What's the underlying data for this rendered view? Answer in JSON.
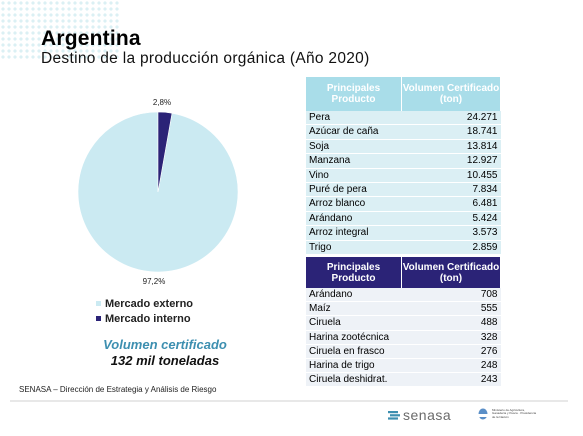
{
  "header": {
    "title": "Argentina",
    "subtitle": "Destino de la producción orgánica (Año 2020)"
  },
  "colors": {
    "externo": "#cbeaf2",
    "interno": "#2b2377",
    "accent": "#3d8fb0",
    "table1_head": "#a9dde9",
    "table2_head": "#2b2377"
  },
  "chart_data": {
    "type": "pie",
    "slices": [
      {
        "name": "Mercado externo",
        "value": 97.2,
        "label": "97,2%"
      },
      {
        "name": "Mercado interno",
        "value": 2.8,
        "label": "2,8%"
      }
    ]
  },
  "legend": {
    "externo": "Mercado externo",
    "interno": "Mercado interno"
  },
  "volume": {
    "label": "Volumen certificado",
    "value": "132 mil toneladas"
  },
  "table1": {
    "col1": "Principales Producto",
    "col2": "Volumen Certificado (ton)",
    "rows": [
      [
        "Pera",
        "24.271"
      ],
      [
        "Azúcar de caña",
        "18.741"
      ],
      [
        "Soja",
        "13.814"
      ],
      [
        "Manzana",
        "12.927"
      ],
      [
        "Vino",
        "10.455"
      ],
      [
        "Puré de pera",
        "7.834"
      ],
      [
        "Arroz blanco",
        "6.481"
      ],
      [
        "Arándano",
        "5.424"
      ],
      [
        "Arroz integral",
        "3.573"
      ],
      [
        "Trigo",
        "2.859"
      ]
    ]
  },
  "table2": {
    "col1": "Principales Producto",
    "col2": "Volumen Certificado (ton)",
    "rows": [
      [
        "Arándano",
        "708"
      ],
      [
        "Maíz",
        "555"
      ],
      [
        "Ciruela",
        "488"
      ],
      [
        "Harina zootécnica",
        "328"
      ],
      [
        "Ciruela en frasco",
        "276"
      ],
      [
        "Harina de trigo",
        "248"
      ],
      [
        "Ciruela deshidrat.",
        "243"
      ]
    ]
  },
  "footer": {
    "source": "SENASA – Dirección de Estrategia y Análisis de Riesgo"
  },
  "logos": {
    "senasa": "senasa",
    "ministry": "Ministerio de Agricultura, Ganadería y Pesca · Presidencia de la Nación"
  }
}
